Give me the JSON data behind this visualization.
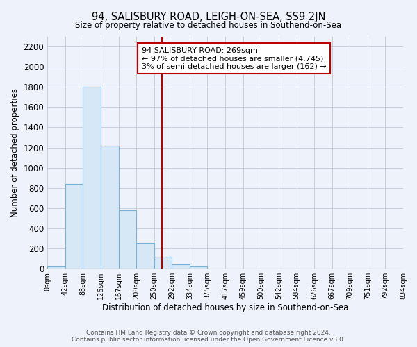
{
  "title": "94, SALISBURY ROAD, LEIGH-ON-SEA, SS9 2JN",
  "subtitle": "Size of property relative to detached houses in Southend-on-Sea",
  "xlabel": "Distribution of detached houses by size in Southend-on-Sea",
  "ylabel": "Number of detached properties",
  "bar_edges": [
    0,
    42,
    83,
    125,
    167,
    209,
    250,
    292,
    334,
    375,
    417,
    459,
    500,
    542,
    584,
    626,
    667,
    709,
    751,
    792,
    834
  ],
  "bar_heights": [
    25,
    840,
    1800,
    1215,
    580,
    255,
    120,
    45,
    25,
    0,
    0,
    0,
    0,
    0,
    0,
    0,
    0,
    0,
    0,
    0
  ],
  "bar_color": "#d6e8f5",
  "bar_edgecolor": "#7ab0d4",
  "vline_x": 269,
  "vline_color": "#bb0000",
  "annotation_line1": "94 SALISBURY ROAD: 269sqm",
  "annotation_line2": "← 97% of detached houses are smaller (4,745)",
  "annotation_line3": "3% of semi-detached houses are larger (162) →",
  "annotation_box_edgecolor": "#bb0000",
  "annotation_box_facecolor": "#ffffff",
  "ylim": [
    0,
    2300
  ],
  "yticks": [
    0,
    200,
    400,
    600,
    800,
    1000,
    1200,
    1400,
    1600,
    1800,
    2000,
    2200
  ],
  "tick_labels": [
    "0sqm",
    "42sqm",
    "83sqm",
    "125sqm",
    "167sqm",
    "209sqm",
    "250sqm",
    "292sqm",
    "334sqm",
    "375sqm",
    "417sqm",
    "459sqm",
    "500sqm",
    "542sqm",
    "584sqm",
    "626sqm",
    "667sqm",
    "709sqm",
    "751sqm",
    "792sqm",
    "834sqm"
  ],
  "footer_text": "Contains HM Land Registry data © Crown copyright and database right 2024.\nContains public sector information licensed under the Open Government Licence v3.0.",
  "background_color": "#eef2fb",
  "grid_color": "#c8cedd"
}
